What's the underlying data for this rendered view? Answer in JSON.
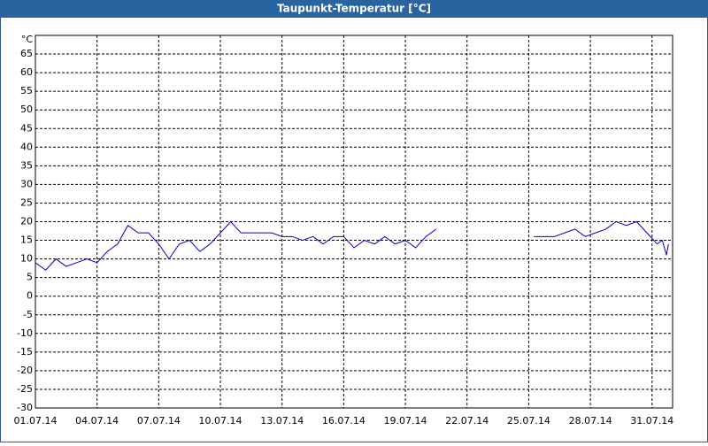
{
  "chart_data": {
    "type": "line",
    "title": "Taupunkt-Temperatur [°C]",
    "unit": "°C",
    "x": [
      0,
      0.5,
      1,
      1.5,
      2,
      2.5,
      3,
      3.5,
      4,
      4.5,
      5,
      5.5,
      6,
      6.5,
      7,
      7.5,
      8,
      8.5,
      9,
      9.5,
      10,
      10.5,
      11,
      11.5,
      12,
      12.5,
      13,
      13.5,
      14,
      14.5,
      15,
      15.5,
      16,
      16.5,
      17,
      17.5,
      18,
      18.5,
      19,
      19.5,
      22,
      24.25,
      24.75,
      25.25,
      25.75,
      26.25,
      26.75,
      27.25,
      27.75,
      28.25,
      28.75,
      29.25,
      29.75,
      30.25,
      30.5,
      30.7,
      30.8
    ],
    "series": [
      {
        "name": "Taupunkt",
        "color": "#0000c8",
        "values": [
          9,
          7,
          10,
          8,
          9,
          10,
          9,
          12,
          14,
          19,
          17,
          17,
          14,
          10,
          14,
          15,
          12,
          14,
          17,
          20,
          17,
          17,
          17,
          17,
          16,
          16,
          15,
          16,
          14,
          16,
          16,
          13,
          15,
          14,
          16,
          14,
          15,
          13,
          16,
          18,
          null,
          16,
          16,
          16,
          17,
          18,
          16,
          17,
          18,
          20,
          19,
          20,
          17,
          14,
          15,
          11,
          14
        ]
      }
    ],
    "xlim": [
      0,
      31
    ],
    "xticks": [
      {
        "value": 0,
        "label": "01.07.14"
      },
      {
        "value": 3,
        "label": "04.07.14"
      },
      {
        "value": 6,
        "label": "07.07.14"
      },
      {
        "value": 9,
        "label": "10.07.14"
      },
      {
        "value": 12,
        "label": "13.07.14"
      },
      {
        "value": 15,
        "label": "16.07.14"
      },
      {
        "value": 18,
        "label": "19.07.14"
      },
      {
        "value": 21,
        "label": "22.07.14"
      },
      {
        "value": 24,
        "label": "25.07.14"
      },
      {
        "value": 27,
        "label": "28.07.14"
      },
      {
        "value": 30,
        "label": "31.07.14"
      }
    ],
    "ylim": [
      -30,
      70
    ],
    "yticks": [
      -30,
      -25,
      -20,
      -15,
      -10,
      -5,
      0,
      5,
      10,
      15,
      20,
      25,
      30,
      35,
      40,
      45,
      50,
      55,
      60,
      65
    ],
    "grid": true
  }
}
